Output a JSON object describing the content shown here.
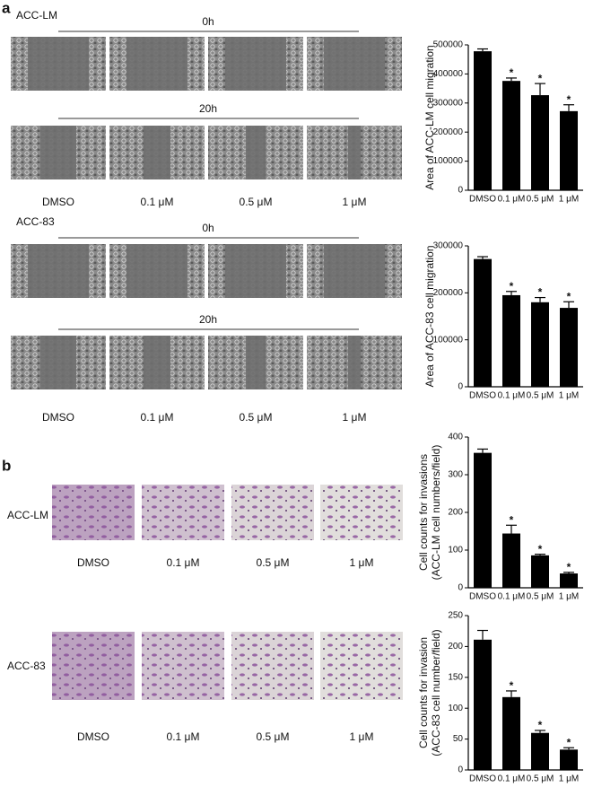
{
  "figure": {
    "panel_a": {
      "label": "a",
      "groups": [
        {
          "cell": "ACC-LM",
          "times": [
            "0h",
            "20h"
          ],
          "columns": [
            "DMSO",
            "0.1 μM",
            "0.5 μM",
            "1 μM"
          ]
        },
        {
          "cell": "ACC-83",
          "times": [
            "0h",
            "20h"
          ],
          "columns": [
            "DMSO",
            "0.1 μM",
            "0.5 μM",
            "1 μM"
          ]
        }
      ]
    },
    "panel_b": {
      "label": "b",
      "groups": [
        {
          "cell": "ACC-LM",
          "columns": [
            "DMSO",
            "0.1 μM",
            "0.5 μM",
            "1 μM"
          ]
        },
        {
          "cell": "ACC-83",
          "columns": [
            "DMSO",
            "0.1 μM",
            "0.5 μM",
            "1 μM"
          ]
        }
      ]
    }
  },
  "chart_data": [
    {
      "type": "bar",
      "ylabel": [
        "Area of ACC-LM cell migration"
      ],
      "categories": [
        "DMSO",
        "0.1 μM",
        "0.5 μM",
        "1 μM"
      ],
      "values": [
        478000,
        376000,
        327000,
        272000
      ],
      "errors": [
        8000,
        10000,
        40000,
        22000
      ],
      "significance": [
        null,
        "*",
        "*",
        "*"
      ],
      "color": "#000000",
      "ylim": [
        0,
        500000
      ],
      "yticks": [
        0,
        100000,
        200000,
        300000,
        400000,
        500000
      ]
    },
    {
      "type": "bar",
      "ylabel": [
        "Area of ACC-83 cell migration"
      ],
      "categories": [
        "DMSO",
        "0.1 μM",
        "0.5 μM",
        "1 μM"
      ],
      "values": [
        272000,
        195000,
        180000,
        168000
      ],
      "errors": [
        5000,
        8000,
        10000,
        13000
      ],
      "significance": [
        null,
        "*",
        "*",
        "*"
      ],
      "color": "#000000",
      "ylim": [
        0,
        300000
      ],
      "yticks": [
        0,
        100000,
        200000,
        300000
      ]
    },
    {
      "type": "bar",
      "ylabel": [
        "Cell counts for invasions",
        "(ACC-LM cell numbers/field)"
      ],
      "categories": [
        "DMSO",
        "0.1 μM",
        "0.5 μM",
        "1 μM"
      ],
      "values": [
        358,
        144,
        86,
        38
      ],
      "errors": [
        10,
        22,
        3,
        3
      ],
      "significance": [
        null,
        "*",
        "*",
        "*"
      ],
      "color": "#000000",
      "ylim": [
        0,
        400
      ],
      "yticks": [
        0,
        100,
        200,
        300,
        400
      ]
    },
    {
      "type": "bar",
      "ylabel": [
        "Cell counts for invasion",
        "(ACC-83 cell number/field)"
      ],
      "categories": [
        "DMSO",
        "0.1 μM",
        "0.5 μM",
        "1 μM"
      ],
      "values": [
        211,
        118,
        60,
        33
      ],
      "errors": [
        15,
        10,
        4,
        3
      ],
      "significance": [
        null,
        "*",
        "*",
        "*"
      ],
      "color": "#000000",
      "ylim": [
        0,
        250
      ],
      "yticks": [
        0,
        50,
        100,
        150,
        200,
        250
      ]
    }
  ]
}
